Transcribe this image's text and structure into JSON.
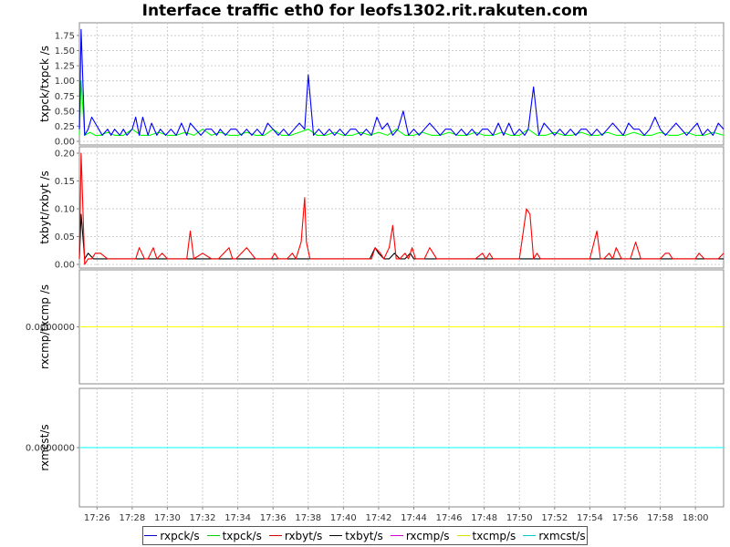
{
  "title": "Interface traffic eth0 for leofs1302.rit.rakuten.com",
  "colors": {
    "rxpck": "#0000ff",
    "txpck": "#00ff00",
    "rxbyt": "#ff0000",
    "txbyt": "#000000",
    "rxcmp": "#cc00cc",
    "txcmp": "#ffff00",
    "rxmcst": "#00ffff"
  },
  "legend": [
    {
      "label": "rxpck/s",
      "color": "#0000cc"
    },
    {
      "label": "txpck/s",
      "color": "#00cc00"
    },
    {
      "label": "rxbyt/s",
      "color": "#cc0000"
    },
    {
      "label": "txbyt/s",
      "color": "#000000"
    },
    {
      "label": "rxcmp/s",
      "color": "#cc00cc"
    },
    {
      "label": "txcmp/s",
      "color": "#dddd00"
    },
    {
      "label": "rxmcst/s",
      "color": "#00cccc"
    }
  ],
  "chart_data": {
    "type": "line",
    "title": "Interface traffic eth0 for leofs1302.rit.rakuten.com",
    "x_ticks": [
      "17:26",
      "17:28",
      "17:30",
      "17:32",
      "17:34",
      "17:36",
      "17:38",
      "17:40",
      "17:42",
      "17:44",
      "17:46",
      "17:48",
      "17:50",
      "17:52",
      "17:54",
      "17:56",
      "17:58",
      "18:00"
    ],
    "x_range_minutes": [
      25.0,
      61.6
    ],
    "panels": [
      {
        "ylabel": "txpck/txpck /s",
        "ylim": [
          0,
          1.9
        ],
        "y_ticks": [
          "0.00",
          "0.25",
          "0.50",
          "0.75",
          "1.00",
          "1.25",
          "1.50",
          "1.75"
        ],
        "y_tick_values": [
          0,
          0.25,
          0.5,
          0.75,
          1.0,
          1.25,
          1.5,
          1.75
        ],
        "series": [
          {
            "name": "rxpck/s",
            "color_key": "rxpck",
            "x": [
              25.0,
              25.1,
              25.3,
              25.5,
              25.7,
              25.9,
              26.1,
              26.3,
              26.6,
              26.8,
              27.0,
              27.3,
              27.5,
              27.7,
              28.0,
              28.2,
              28.4,
              28.6,
              28.9,
              29.1,
              29.4,
              29.6,
              29.9,
              30.2,
              30.5,
              30.8,
              31.1,
              31.3,
              31.6,
              31.9,
              32.2,
              32.5,
              32.8,
              33.0,
              33.3,
              33.6,
              33.9,
              34.2,
              34.5,
              34.8,
              35.1,
              35.4,
              35.7,
              36.0,
              36.3,
              36.6,
              36.9,
              37.2,
              37.5,
              37.8,
              38.0,
              38.3,
              38.6,
              38.9,
              39.2,
              39.5,
              39.8,
              40.1,
              40.4,
              40.7,
              41.0,
              41.3,
              41.6,
              41.9,
              42.2,
              42.5,
              42.8,
              43.1,
              43.4,
              43.7,
              44.0,
              44.3,
              44.6,
              44.9,
              45.2,
              45.5,
              45.8,
              46.1,
              46.4,
              46.7,
              47.0,
              47.3,
              47.6,
              47.9,
              48.2,
              48.5,
              48.8,
              49.1,
              49.4,
              49.7,
              50.0,
              50.3,
              50.5,
              50.8,
              51.1,
              51.4,
              51.7,
              52.0,
              52.3,
              52.6,
              52.9,
              53.2,
              53.5,
              53.8,
              54.1,
              54.4,
              54.7,
              55.0,
              55.3,
              55.6,
              55.9,
              56.2,
              56.5,
              56.8,
              57.1,
              57.4,
              57.7,
              58.0,
              58.3,
              58.6,
              58.9,
              59.2,
              59.5,
              59.8,
              60.1,
              60.4,
              60.7,
              61.0,
              61.3,
              61.6
            ],
            "y": [
              0.2,
              1.85,
              0.1,
              0.2,
              0.4,
              0.3,
              0.2,
              0.1,
              0.2,
              0.1,
              0.2,
              0.1,
              0.2,
              0.1,
              0.2,
              0.4,
              0.1,
              0.4,
              0.1,
              0.3,
              0.1,
              0.2,
              0.1,
              0.2,
              0.1,
              0.3,
              0.1,
              0.3,
              0.2,
              0.1,
              0.2,
              0.2,
              0.1,
              0.2,
              0.1,
              0.2,
              0.2,
              0.1,
              0.2,
              0.1,
              0.2,
              0.1,
              0.3,
              0.2,
              0.1,
              0.2,
              0.1,
              0.2,
              0.3,
              0.2,
              1.1,
              0.1,
              0.2,
              0.1,
              0.2,
              0.1,
              0.2,
              0.1,
              0.2,
              0.2,
              0.1,
              0.2,
              0.1,
              0.4,
              0.2,
              0.3,
              0.1,
              0.2,
              0.5,
              0.1,
              0.2,
              0.1,
              0.2,
              0.3,
              0.2,
              0.1,
              0.2,
              0.2,
              0.1,
              0.2,
              0.1,
              0.2,
              0.1,
              0.2,
              0.2,
              0.1,
              0.3,
              0.1,
              0.3,
              0.1,
              0.2,
              0.1,
              0.2,
              0.9,
              0.1,
              0.3,
              0.2,
              0.1,
              0.2,
              0.1,
              0.2,
              0.1,
              0.2,
              0.2,
              0.1,
              0.2,
              0.1,
              0.2,
              0.3,
              0.2,
              0.1,
              0.3,
              0.2,
              0.2,
              0.1,
              0.2,
              0.4,
              0.2,
              0.1,
              0.2,
              0.3,
              0.2,
              0.1,
              0.2,
              0.3,
              0.1,
              0.2,
              0.1,
              0.3,
              0.2
            ]
          },
          {
            "name": "txpck/s",
            "color_key": "txpck",
            "x": [
              25.0,
              25.1,
              25.3,
              25.6,
              25.9,
              26.2,
              26.6,
              27.0,
              27.5,
              28.0,
              28.5,
              29.0,
              29.5,
              30.0,
              30.5,
              31.0,
              31.5,
              32.0,
              32.5,
              33.0,
              33.5,
              34.0,
              34.5,
              35.0,
              35.5,
              36.0,
              36.5,
              37.0,
              37.5,
              38.0,
              38.5,
              39.0,
              39.5,
              40.0,
              40.5,
              41.0,
              41.5,
              42.0,
              42.5,
              43.0,
              43.5,
              44.0,
              44.5,
              45.0,
              45.5,
              46.0,
              46.5,
              47.0,
              47.5,
              48.0,
              48.5,
              49.0,
              49.5,
              50.0,
              50.5,
              51.0,
              51.5,
              52.0,
              52.5,
              53.0,
              53.5,
              54.0,
              54.5,
              55.0,
              55.5,
              56.0,
              56.5,
              57.0,
              57.5,
              58.0,
              58.5,
              59.0,
              59.5,
              60.0,
              60.5,
              61.0,
              61.6
            ],
            "y": [
              0.1,
              1.0,
              0.1,
              0.15,
              0.1,
              0.1,
              0.15,
              0.1,
              0.1,
              0.2,
              0.1,
              0.1,
              0.15,
              0.1,
              0.1,
              0.15,
              0.1,
              0.2,
              0.1,
              0.15,
              0.1,
              0.1,
              0.15,
              0.1,
              0.1,
              0.2,
              0.1,
              0.1,
              0.15,
              0.2,
              0.1,
              0.1,
              0.15,
              0.1,
              0.1,
              0.15,
              0.1,
              0.15,
              0.1,
              0.2,
              0.1,
              0.1,
              0.15,
              0.1,
              0.1,
              0.15,
              0.1,
              0.1,
              0.15,
              0.1,
              0.1,
              0.15,
              0.1,
              0.1,
              0.2,
              0.1,
              0.1,
              0.15,
              0.1,
              0.1,
              0.15,
              0.1,
              0.1,
              0.15,
              0.1,
              0.1,
              0.15,
              0.1,
              0.1,
              0.15,
              0.1,
              0.1,
              0.15,
              0.1,
              0.1,
              0.15,
              0.1
            ]
          }
        ]
      },
      {
        "ylabel": "txbyt/rxbyt /s",
        "ylim": [
          0,
          0.205
        ],
        "y_ticks": [
          "0.00",
          "0.05",
          "0.10",
          "0.15",
          "0.20"
        ],
        "y_tick_values": [
          0,
          0.05,
          0.1,
          0.15,
          0.2
        ],
        "series": [
          {
            "name": "rxbyt/s",
            "color_key": "rxbyt",
            "x": [
              25.0,
              25.1,
              25.3,
              25.5,
              25.7,
              25.9,
              26.2,
              26.6,
              27.0,
              27.5,
              28.0,
              28.2,
              28.4,
              28.7,
              28.9,
              29.2,
              29.4,
              29.7,
              30.0,
              30.5,
              30.9,
              31.1,
              31.3,
              31.5,
              32.0,
              32.5,
              32.7,
              32.9,
              33.5,
              33.7,
              33.9,
              34.5,
              35.0,
              35.5,
              35.9,
              36.1,
              36.3,
              36.8,
              37.1,
              37.3,
              37.6,
              37.8,
              37.9,
              38.1,
              38.4,
              38.7,
              39.0,
              39.5,
              40.0,
              40.5,
              41.0,
              41.5,
              41.6,
              41.8,
              42.1,
              42.3,
              42.6,
              42.8,
              43.0,
              43.2,
              43.5,
              43.7,
              43.9,
              44.1,
              44.3,
              44.6,
              44.9,
              45.3,
              45.5,
              45.7,
              46.0,
              46.5,
              47.0,
              47.5,
              47.9,
              48.1,
              48.3,
              48.5,
              48.7,
              49.0,
              49.5,
              50.0,
              50.4,
              50.6,
              50.8,
              51.0,
              51.2,
              51.4,
              52.0,
              52.5,
              53.0,
              53.5,
              54.0,
              54.4,
              54.6,
              54.8,
              55.1,
              55.3,
              55.5,
              55.8,
              56.0,
              56.3,
              56.6,
              56.9,
              57.1,
              57.5,
              58.0,
              58.3,
              58.5,
              58.7,
              59.0,
              59.5,
              59.8,
              60.0,
              60.2,
              60.5,
              60.8,
              61.1,
              61.3,
              61.6
            ],
            "y": [
              0.01,
              0.2,
              0.0,
              0.01,
              0.01,
              0.02,
              0.02,
              0.01,
              0.01,
              0.01,
              0.01,
              0.01,
              0.03,
              0.01,
              0.01,
              0.03,
              0.01,
              0.02,
              0.01,
              0.01,
              0.01,
              0.01,
              0.06,
              0.01,
              0.02,
              0.01,
              0.01,
              0.01,
              0.03,
              0.01,
              0.01,
              0.03,
              0.01,
              0.01,
              0.01,
              0.02,
              0.01,
              0.01,
              0.02,
              0.01,
              0.04,
              0.12,
              0.04,
              0.01,
              0.01,
              0.01,
              0.01,
              0.01,
              0.01,
              0.01,
              0.01,
              0.01,
              0.01,
              0.03,
              0.02,
              0.01,
              0.03,
              0.07,
              0.01,
              0.01,
              0.02,
              0.01,
              0.03,
              0.01,
              0.01,
              0.01,
              0.03,
              0.01,
              0.01,
              0.01,
              0.01,
              0.01,
              0.01,
              0.01,
              0.02,
              0.01,
              0.02,
              0.01,
              0.01,
              0.01,
              0.01,
              0.01,
              0.1,
              0.09,
              0.01,
              0.02,
              0.01,
              0.01,
              0.01,
              0.01,
              0.01,
              0.01,
              0.01,
              0.06,
              0.01,
              0.01,
              0.02,
              0.01,
              0.03,
              0.01,
              0.01,
              0.01,
              0.04,
              0.01,
              0.01,
              0.01,
              0.01,
              0.02,
              0.02,
              0.01,
              0.01,
              0.01,
              0.01,
              0.01,
              0.02,
              0.01,
              0.01,
              0.01,
              0.01,
              0.02
            ]
          },
          {
            "name": "txbyt/s",
            "color_key": "txbyt",
            "x": [
              25.0,
              25.1,
              25.3,
              25.5,
              25.8,
              26.0,
              26.3,
              26.6,
              27.0,
              28.0,
              29.0,
              30.0,
              31.0,
              32.0,
              33.0,
              34.0,
              35.0,
              36.0,
              37.0,
              38.0,
              39.0,
              40.0,
              41.0,
              41.5,
              41.8,
              42.0,
              42.3,
              42.6,
              42.9,
              43.2,
              43.5,
              43.8,
              44.0,
              44.3,
              44.6,
              45.0,
              46.0,
              47.0,
              48.0,
              49.0,
              50.0,
              51.0,
              52.0,
              53.0,
              54.0,
              55.0,
              56.0,
              57.0,
              58.0,
              59.0,
              60.0,
              61.0,
              61.6
            ],
            "y": [
              0.01,
              0.09,
              0.01,
              0.02,
              0.01,
              0.01,
              0.01,
              0.01,
              0.01,
              0.01,
              0.01,
              0.01,
              0.01,
              0.01,
              0.01,
              0.01,
              0.01,
              0.01,
              0.01,
              0.01,
              0.01,
              0.01,
              0.01,
              0.01,
              0.03,
              0.02,
              0.01,
              0.01,
              0.02,
              0.01,
              0.01,
              0.02,
              0.01,
              0.01,
              0.01,
              0.01,
              0.01,
              0.01,
              0.01,
              0.01,
              0.01,
              0.01,
              0.01,
              0.01,
              0.01,
              0.01,
              0.01,
              0.01,
              0.01,
              0.01,
              0.01,
              0.01,
              0.01
            ]
          }
        ]
      },
      {
        "ylabel": "rxcmp/txcmp /s",
        "y_ticks": [
          "0.0000000"
        ],
        "y_tick_values": [
          0
        ],
        "ylim": [
          -1,
          1
        ],
        "series": [
          {
            "name": "txcmp/s",
            "color_key": "txcmp",
            "x": [
              25.0,
              61.6
            ],
            "y": [
              0,
              0
            ]
          },
          {
            "name": "rxcmp/s",
            "color_key": "rxcmp",
            "x": [
              25.0,
              61.6
            ],
            "y": [
              0,
              0
            ]
          }
        ]
      },
      {
        "ylabel": "rxmcst/s",
        "y_ticks": [
          "0.0000000"
        ],
        "y_tick_values": [
          0
        ],
        "ylim": [
          -1,
          1
        ],
        "series": [
          {
            "name": "rxmcst/s",
            "color_key": "rxmcst",
            "x": [
              25.0,
              61.6
            ],
            "y": [
              0,
              0
            ]
          }
        ]
      }
    ]
  }
}
